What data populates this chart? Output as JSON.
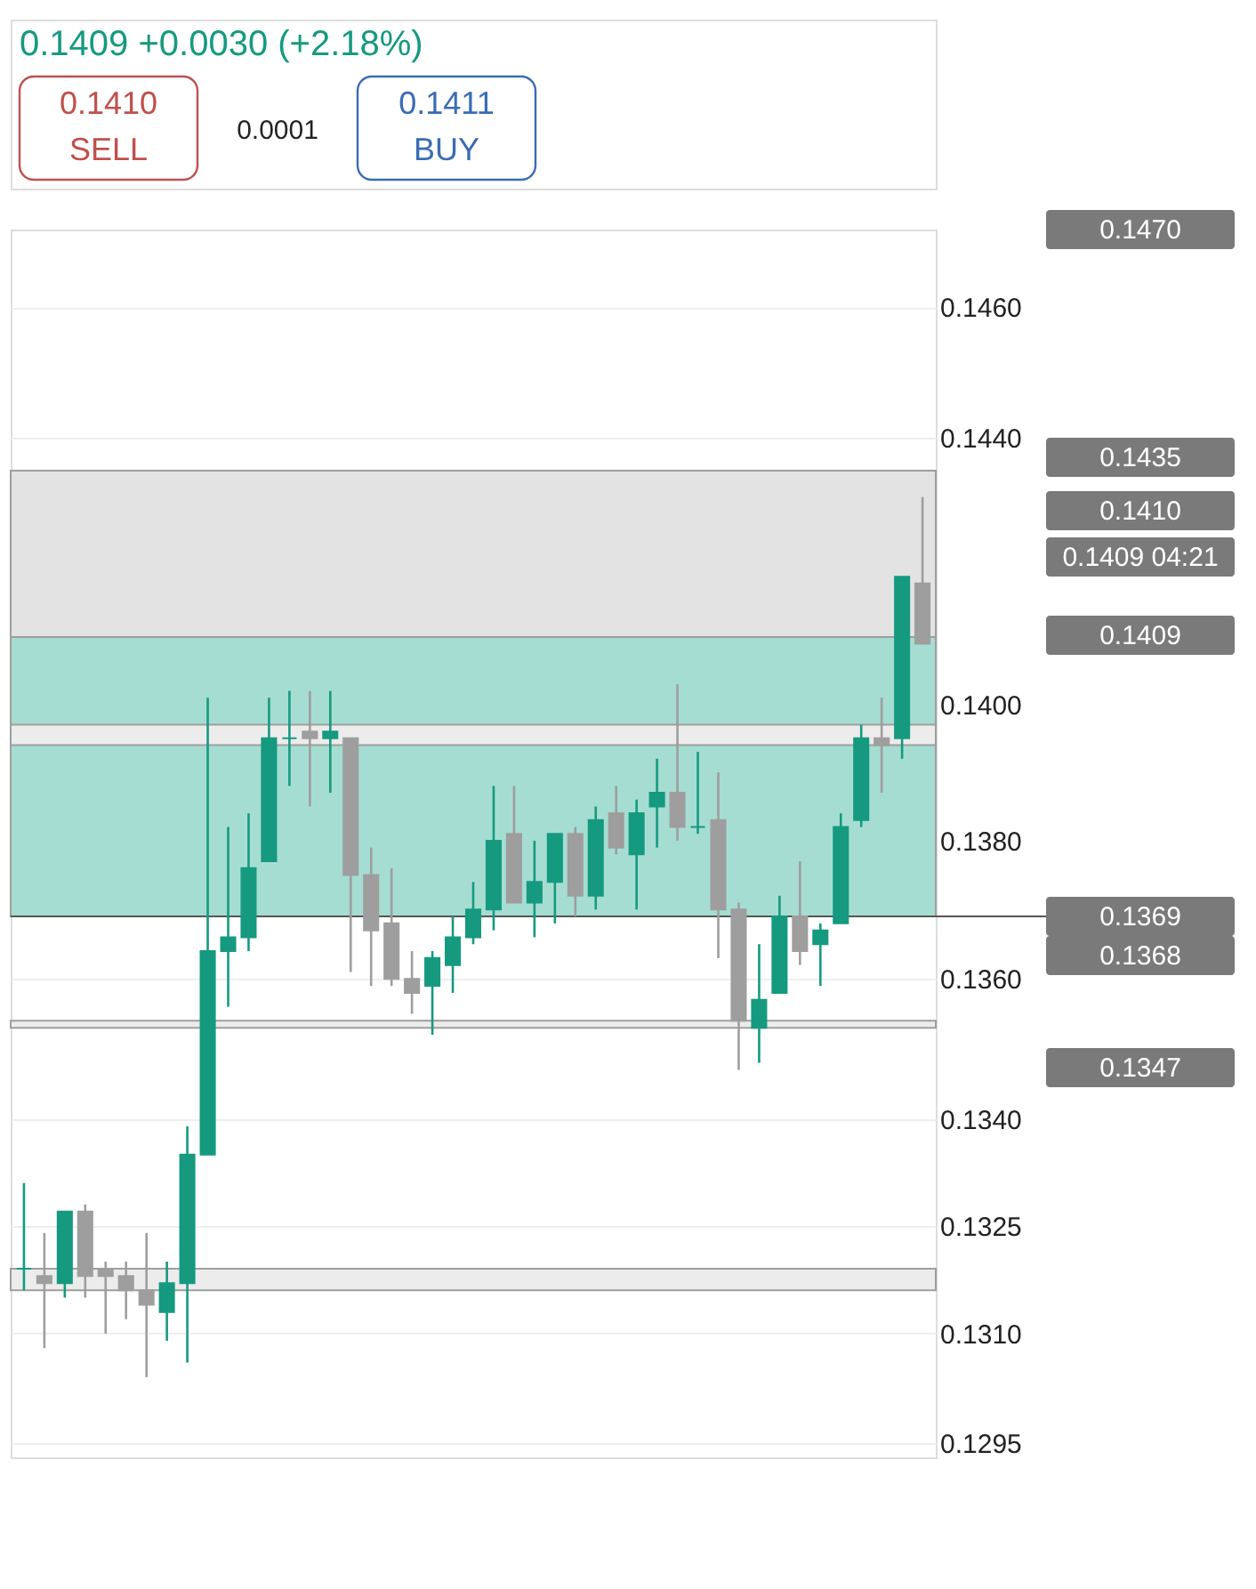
{
  "chart_data": {
    "type": "candlestick",
    "subtitle": "0.1409  +0.0030 (+2.18%)",
    "categories": [
      null,
      null,
      null,
      null,
      null,
      null,
      null,
      null,
      null,
      null,
      null,
      null,
      null,
      null,
      null,
      null,
      null,
      null,
      null,
      null,
      null,
      null,
      null,
      null,
      null,
      null,
      null,
      null,
      null,
      null,
      null,
      null,
      null,
      null,
      null,
      null,
      null,
      null,
      null,
      null,
      null,
      null,
      null,
      null,
      null
    ],
    "ohlc": [
      [
        0.1319,
        0.1331,
        0.1316,
        0.1319
      ],
      [
        0.1318,
        0.1324,
        0.1308,
        0.1317
      ],
      [
        0.1317,
        0.1327,
        0.1315,
        0.1327
      ],
      [
        0.1327,
        0.1328,
        0.1315,
        0.1318
      ],
      [
        0.1319,
        0.132,
        0.131,
        0.1318
      ],
      [
        0.1318,
        0.132,
        0.1312,
        0.1316
      ],
      [
        0.1316,
        0.1324,
        0.1304,
        0.1314
      ],
      [
        0.1313,
        0.132,
        0.1309,
        0.1317
      ],
      [
        0.1317,
        0.1339,
        0.1306,
        0.1335
      ],
      [
        0.1335,
        0.1401,
        0.1335,
        0.1364
      ],
      [
        0.1364,
        0.1382,
        0.1356,
        0.1366
      ],
      [
        0.1366,
        0.1384,
        0.1364,
        0.1376
      ],
      [
        0.1377,
        0.1401,
        0.1377,
        0.1395
      ],
      [
        0.1395,
        0.1402,
        0.1388,
        0.1395
      ],
      [
        0.1396,
        0.1402,
        0.1385,
        0.1395
      ],
      [
        0.1395,
        0.1402,
        0.1387,
        0.1396
      ],
      [
        0.1395,
        0.1395,
        0.1361,
        0.1375
      ],
      [
        0.1375,
        0.1379,
        0.1359,
        0.1367
      ],
      [
        0.1368,
        0.1376,
        0.1359,
        0.136
      ],
      [
        0.136,
        0.1364,
        0.1355,
        0.1358
      ],
      [
        0.1359,
        0.1364,
        0.1352,
        0.1363
      ],
      [
        0.1362,
        0.1369,
        0.1358,
        0.1366
      ],
      [
        0.1366,
        0.1374,
        0.1365,
        0.137
      ],
      [
        0.137,
        0.1388,
        0.1367,
        0.138
      ],
      [
        0.1381,
        0.1388,
        0.1371,
        0.1371
      ],
      [
        0.1371,
        0.138,
        0.1366,
        0.1374
      ],
      [
        0.1374,
        0.1381,
        0.1368,
        0.1381
      ],
      [
        0.1381,
        0.1382,
        0.1369,
        0.1372
      ],
      [
        0.1372,
        0.1385,
        0.137,
        0.1383
      ],
      [
        0.1384,
        0.1388,
        0.1378,
        0.1379
      ],
      [
        0.1378,
        0.1386,
        0.137,
        0.1384
      ],
      [
        0.1385,
        0.1392,
        0.1379,
        0.1387
      ],
      [
        0.1387,
        0.1403,
        0.138,
        0.1382
      ],
      [
        0.1382,
        0.1393,
        0.1381,
        0.1382
      ],
      [
        0.1383,
        0.139,
        0.1363,
        0.137
      ],
      [
        0.137,
        0.1371,
        0.1347,
        0.1354
      ],
      [
        0.1353,
        0.1365,
        0.1348,
        0.1357
      ],
      [
        0.1358,
        0.1372,
        0.1358,
        0.1369
      ],
      [
        0.1369,
        0.1377,
        0.1362,
        0.1364
      ],
      [
        0.1365,
        0.1368,
        0.1359,
        0.1367
      ],
      [
        0.1368,
        0.1384,
        0.1368,
        0.1382
      ],
      [
        0.1383,
        0.1397,
        0.1382,
        0.1395
      ],
      [
        0.1395,
        0.1401,
        0.1387,
        0.1394
      ],
      [
        0.1395,
        0.1419,
        0.1392,
        0.1419
      ],
      [
        0.1418,
        0.1431,
        0.1409,
        0.1409
      ]
    ],
    "colors": [
      "#159a80",
      "#9e9e9e",
      "#159a80",
      "#9e9e9e",
      "#9e9e9e",
      "#9e9e9e",
      "#9e9e9e",
      "#159a80",
      "#159a80",
      "#159a80",
      "#159a80",
      "#159a80",
      "#159a80",
      "#159a80",
      "#9e9e9e",
      "#159a80",
      "#9e9e9e",
      "#9e9e9e",
      "#9e9e9e",
      "#9e9e9e",
      "#159a80",
      "#159a80",
      "#159a80",
      "#159a80",
      "#9e9e9e",
      "#159a80",
      "#159a80",
      "#9e9e9e",
      "#159a80",
      "#9e9e9e",
      "#159a80",
      "#159a80",
      "#9e9e9e",
      "#159a80",
      "#9e9e9e",
      "#9e9e9e",
      "#159a80",
      "#159a80",
      "#9e9e9e",
      "#159a80",
      "#159a80",
      "#159a80",
      "#9e9e9e",
      "#159a80",
      "#9e9e9e"
    ],
    "log": "y",
    "ylim": [
      0.1293,
      0.1472
    ],
    "yticks": [
      0.1295,
      {
        "value": 0.131,
        "label": "0.1310"
      },
      0.1325,
      {
        "value": 0.134,
        "label": "0.1340"
      },
      {
        "value": 0.136,
        "label": "0.1360"
      },
      {
        "value": 0.138,
        "label": "0.1380"
      },
      {
        "value": 0.14,
        "label": "0.1400"
      },
      {
        "value": 0.144,
        "label": "0.1440"
      },
      {
        "value": 0.146,
        "label": "0.1460"
      }
    ],
    "tick_labels": "y",
    "grid": "y",
    "bands": [
      {
        "axis": "y",
        "from": 0.141,
        "to": 0.1435,
        "color": "#e3e3e3"
      },
      {
        "axis": "y",
        "from": 0.1369,
        "to": 0.141,
        "color": "#a6ddd2"
      },
      {
        "axis": "y",
        "from": 0.1394,
        "to": 0.1397,
        "color": "#ececec"
      },
      {
        "axis": "y",
        "from": 0.1353,
        "to": 0.1354,
        "color": "#ececec"
      },
      {
        "axis": "y",
        "from": 0.1316,
        "to": 0.1319,
        "color": "#ececec"
      }
    ],
    "ref_lines": [
      {
        "axis": "y",
        "value": 0.1369,
        "label": "0.1369",
        "color": "#555555"
      }
    ],
    "annotations": [
      "0.1470",
      "0.1435",
      "0.1410",
      "0.1409 04:21",
      "0.1409",
      "0.1368",
      "0.1347",
      "0.1410",
      "SELL",
      "0.0001",
      "0.1411",
      "BUY"
    ]
  }
}
